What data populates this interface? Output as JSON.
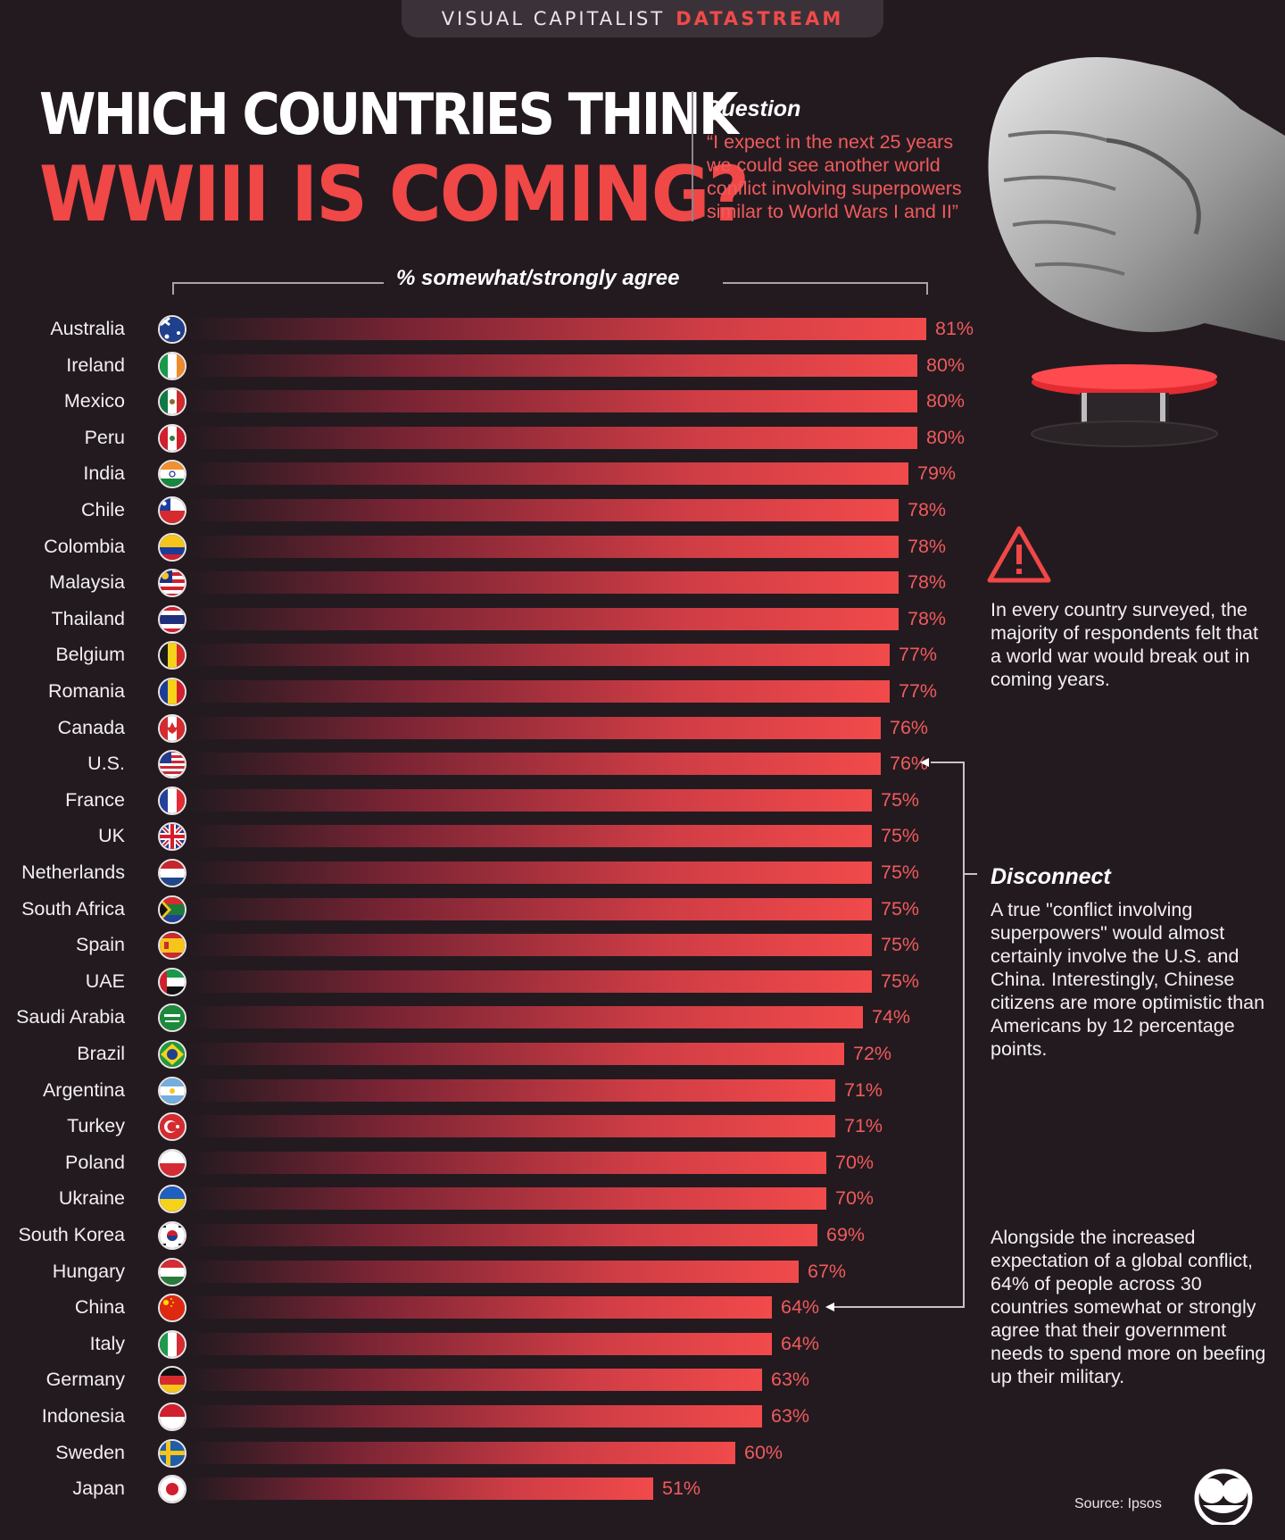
{
  "header": {
    "brand": "VISUAL CAPITALIST",
    "brand_accent": "DATASTREAM"
  },
  "title": {
    "line1": "WHICH COUNTRIES THINK",
    "line2": "WWIII IS COMING?"
  },
  "question": {
    "label": "Question",
    "text": "“I expect in the next 25 years we could see another world conflict involving superpowers similar to World Wars I and II”"
  },
  "chart_data": {
    "type": "bar",
    "orientation": "horizontal",
    "ylabel": "% somewhat/strongly agree",
    "xlim": [
      0,
      81
    ],
    "categories": [
      "Australia",
      "Ireland",
      "Mexico",
      "Peru",
      "India",
      "Chile",
      "Colombia",
      "Malaysia",
      "Thailand",
      "Belgium",
      "Romania",
      "Canada",
      "U.S.",
      "France",
      "UK",
      "Netherlands",
      "South Africa",
      "Spain",
      "UAE",
      "Saudi Arabia",
      "Brazil",
      "Argentina",
      "Turkey",
      "Poland",
      "Ukraine",
      "South Korea",
      "Hungary",
      "China",
      "Italy",
      "Germany",
      "Indonesia",
      "Sweden",
      "Japan"
    ],
    "values": [
      81,
      80,
      80,
      80,
      79,
      78,
      78,
      78,
      78,
      77,
      77,
      76,
      76,
      75,
      75,
      75,
      75,
      75,
      75,
      74,
      72,
      71,
      71,
      70,
      70,
      69,
      67,
      64,
      64,
      63,
      63,
      60,
      51
    ],
    "labels": [
      "81%",
      "80%",
      "80%",
      "80%",
      "79%",
      "78%",
      "78%",
      "78%",
      "78%",
      "77%",
      "77%",
      "76%",
      "76%",
      "75%",
      "75%",
      "75%",
      "75%",
      "75%",
      "75%",
      "74%",
      "72%",
      "71%",
      "71%",
      "70%",
      "70%",
      "69%",
      "67%",
      "64%",
      "64%",
      "63%",
      "63%",
      "60%",
      "51%"
    ],
    "colors": {
      "bar_end": "#f14a4b",
      "label": "#ef5b5b"
    }
  },
  "flags": [
    "australia-flag",
    "ireland-flag",
    "mexico-flag",
    "peru-flag",
    "india-flag",
    "chile-flag",
    "colombia-flag",
    "malaysia-flag",
    "thailand-flag",
    "belgium-flag",
    "romania-flag",
    "canada-flag",
    "us-flag",
    "france-flag",
    "uk-flag",
    "netherlands-flag",
    "south-africa-flag",
    "spain-flag",
    "uae-flag",
    "saudi-arabia-flag",
    "brazil-flag",
    "argentina-flag",
    "turkey-flag",
    "poland-flag",
    "ukraine-flag",
    "south-korea-flag",
    "hungary-flag",
    "china-flag",
    "italy-flag",
    "germany-flag",
    "indonesia-flag",
    "sweden-flag",
    "japan-flag"
  ],
  "notes": {
    "note1": "In every country surveyed, the majority of respondents felt that a world war would break out in coming years.",
    "disconnect_title": "Disconnect",
    "note2": "A true \"conflict involving superpowers\" would almost certainly involve the U.S. and China. Interestingly, Chinese citizens are more optimistic than Americans by 12 percentage points.",
    "note3": "Alongside the increased expectation of a global conflict, 64% of people across 30 countries somewhat or strongly agree that their government needs to spend more on beefing up their military."
  },
  "source": "Source: Ipsos",
  "colors": {
    "background": "#231a20",
    "accent": "#f04747",
    "text": "#f2eef1"
  }
}
